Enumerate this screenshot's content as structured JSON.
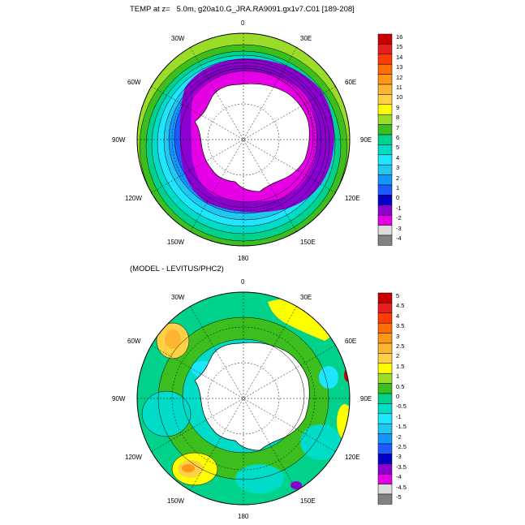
{
  "figure": {
    "panel1": {
      "title": "TEMP at z=   5.0m, g20a10.G_JRA.RA9091.gx1v7.C01 [189-208]",
      "longitude_labels": [
        "0",
        "30E",
        "60E",
        "90E",
        "120E",
        "150E",
        "180",
        "150W",
        "120W",
        "90W",
        "60W",
        "30W"
      ],
      "colorbar": {
        "levels": [
          "16",
          "15",
          "14",
          "13",
          "12",
          "11",
          "10",
          "9",
          "8",
          "7",
          "6",
          "5",
          "4",
          "3",
          "2",
          "1",
          "0",
          "-1",
          "-2",
          "-3",
          "-4"
        ],
        "colors": [
          "#c80000",
          "#e61e1e",
          "#ff3c00",
          "#ff6e00",
          "#ff9614",
          "#ffb432",
          "#ffd246",
          "#ffff00",
          "#9bdc28",
          "#3cbe1e",
          "#00d28c",
          "#00dcc8",
          "#1ee6ff",
          "#1ec8f0",
          "#1496ff",
          "#1e5aff",
          "#0000c8",
          "#8c00d2",
          "#e600e6",
          "#dcdcdc",
          "#828282"
        ]
      }
    },
    "panel2": {
      "title": "(MODEL - LEVITUS/PHC2)",
      "longitude_labels": [
        "0",
        "30E",
        "60E",
        "90E",
        "120E",
        "150E",
        "180",
        "150W",
        "120W",
        "90W",
        "60W",
        "30W"
      ],
      "colorbar": {
        "levels": [
          "5",
          "4.5",
          "4",
          "3.5",
          "3",
          "2.5",
          "2",
          "1.5",
          "1",
          "0.5",
          "0",
          "-0.5",
          "-1",
          "-1.5",
          "-2",
          "-2.5",
          "-3",
          "-3.5",
          "-4",
          "-4.5",
          "-5"
        ],
        "colors": [
          "#c80000",
          "#e61e1e",
          "#ff3c00",
          "#ff6e00",
          "#ff9614",
          "#ffb432",
          "#ffd246",
          "#ffff00",
          "#9bdc28",
          "#3cbe1e",
          "#00d28c",
          "#00dcc8",
          "#1ee6ff",
          "#1ec8f0",
          "#1496ff",
          "#1e5aff",
          "#0000c8",
          "#8c00d2",
          "#e600e6",
          "#dcdcdc",
          "#828282"
        ]
      }
    }
  }
}
